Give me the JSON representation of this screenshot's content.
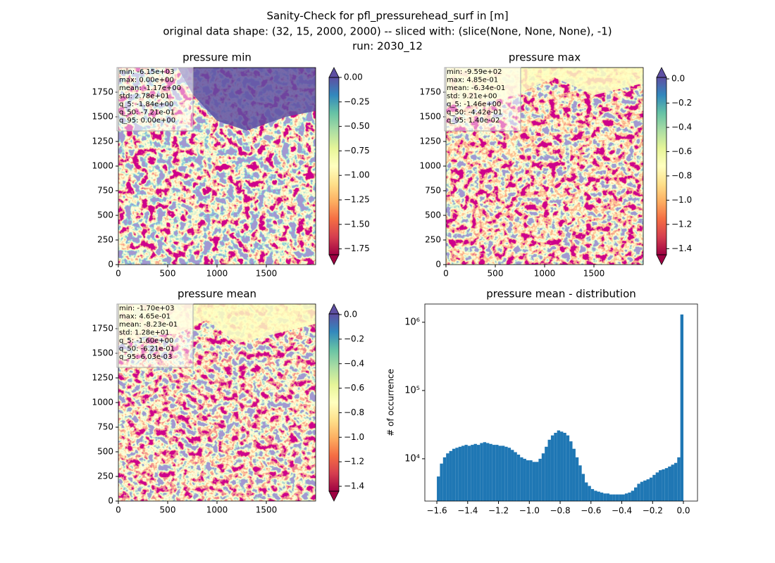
{
  "suptitle": [
    "Sanity-Check for pfl_pressurehead_surf in [m]",
    "original data shape: (32, 15, 2000, 2000) -- sliced with: (slice(None, None, None), -1)",
    "run: 2030_12"
  ],
  "chart_data": [
    {
      "type": "heatmap",
      "title": "pressure min",
      "colormap": "Spectral",
      "extend": "both",
      "xlim": [
        0,
        2000
      ],
      "ylim": [
        0,
        2000
      ],
      "xticks": [
        0,
        500,
        1000,
        1500
      ],
      "yticks": [
        0,
        250,
        500,
        750,
        1000,
        1250,
        1500,
        1750
      ],
      "clim": [
        -1.81,
        0
      ],
      "cticks": [
        {
          "value": 0,
          "label": "0.00"
        },
        {
          "value": -0.25,
          "label": "−0.25"
        },
        {
          "value": -0.5,
          "label": "−0.50"
        },
        {
          "value": -0.75,
          "label": "−0.75"
        },
        {
          "value": -1,
          "label": "−1.00"
        },
        {
          "value": -1.25,
          "label": "−1.25"
        },
        {
          "value": -1.5,
          "label": "−1.50"
        },
        {
          "value": -1.75,
          "label": "−1.75"
        }
      ],
      "stats": [
        "min: -6.15e+03",
        "max: 0.00e+00",
        "mean: -1.17e+00",
        "std: 2.78e+01",
        "q_5: -1.84e+00",
        "q_50: -7.21e-01",
        "q_95: 0.00e+00"
      ]
    },
    {
      "type": "heatmap",
      "title": "pressure max",
      "colormap": "Spectral",
      "extend": "both",
      "xlim": [
        0,
        2000
      ],
      "ylim": [
        0,
        2000
      ],
      "xticks": [
        0,
        500,
        1000,
        1500
      ],
      "yticks": [
        0,
        250,
        500,
        750,
        1000,
        1250,
        1500,
        1750
      ],
      "clim": [
        -1.45,
        0.012
      ],
      "cticks": [
        {
          "value": 0,
          "label": "0.0"
        },
        {
          "value": -0.2,
          "label": "−0.2"
        },
        {
          "value": -0.4,
          "label": "−0.4"
        },
        {
          "value": -0.6,
          "label": "−0.6"
        },
        {
          "value": -0.8,
          "label": "−0.8"
        },
        {
          "value": -1,
          "label": "−1.0"
        },
        {
          "value": -1.2,
          "label": "−1.2"
        },
        {
          "value": -1.4,
          "label": "−1.4"
        }
      ],
      "stats": [
        "min: -9.59e+02",
        "max: 4.85e-01",
        "mean: -6.34e-01",
        "std: 9.21e+00",
        "q_5: -1.46e+00",
        "q_50: -4.42e-01",
        "q_95: 1.40e-02"
      ]
    },
    {
      "type": "heatmap",
      "title": "pressure mean",
      "colormap": "Spectral",
      "extend": "both",
      "xlim": [
        0,
        2000
      ],
      "ylim": [
        0,
        2000
      ],
      "xticks": [
        0,
        500,
        1000,
        1500
      ],
      "yticks": [
        0,
        250,
        500,
        750,
        1000,
        1250,
        1500,
        1750
      ],
      "clim": [
        -1.44,
        0.006
      ],
      "cticks": [
        {
          "value": 0,
          "label": "0.0"
        },
        {
          "value": -0.2,
          "label": "−0.2"
        },
        {
          "value": -0.4,
          "label": "−0.4"
        },
        {
          "value": -0.6,
          "label": "−0.6"
        },
        {
          "value": -0.8,
          "label": "−0.8"
        },
        {
          "value": -1,
          "label": "−1.0"
        },
        {
          "value": -1.2,
          "label": "−1.2"
        },
        {
          "value": -1.4,
          "label": "−1.4"
        }
      ],
      "stats": [
        "min: -1.70e+03",
        "max: 4.65e-01",
        "mean: -8.23e-01",
        "std: 1.28e+01",
        "q_5: -1.60e+00",
        "q_50: -6.21e-01",
        "q_95: 6.03e-03"
      ]
    },
    {
      "type": "histogram",
      "title": "pressure mean - distribution",
      "ylabel": "# of occurrence",
      "color": "#1f77b4",
      "log_y": true,
      "xlim": [
        -1.678,
        0.0914
      ],
      "ylim": [
        2400,
        1850000
      ],
      "xticks": [
        {
          "value": -1.6,
          "label": "−1.6"
        },
        {
          "value": -1.4,
          "label": "−1.4"
        },
        {
          "value": -1.2,
          "label": "−1.2"
        },
        {
          "value": -1,
          "label": "−1.0"
        },
        {
          "value": -0.8,
          "label": "−0.8"
        },
        {
          "value": -0.6,
          "label": "−0.6"
        },
        {
          "value": -0.4,
          "label": "−0.4"
        },
        {
          "value": -0.2,
          "label": "−0.2"
        },
        {
          "value": 0,
          "label": "0.0"
        }
      ],
      "yticks": [
        {
          "value": 10000,
          "label": "10⁴"
        },
        {
          "value": 100000,
          "label": "10⁵"
        },
        {
          "value": 1000000,
          "label": "10⁶"
        }
      ],
      "bins": [
        -1.6,
        -1.58,
        -1.56,
        -1.54,
        -1.52,
        -1.5,
        -1.48,
        -1.46,
        -1.44,
        -1.42,
        -1.4,
        -1.38,
        -1.36,
        -1.34,
        -1.32,
        -1.3,
        -1.28,
        -1.26,
        -1.24,
        -1.22,
        -1.2,
        -1.18,
        -1.16,
        -1.14,
        -1.12,
        -1.1,
        -1.08,
        -1.06,
        -1.04,
        -1.02,
        -1,
        -0.98,
        -0.96,
        -0.94,
        -0.92,
        -0.9,
        -0.88,
        -0.86,
        -0.84,
        -0.82,
        -0.8,
        -0.78,
        -0.76,
        -0.74,
        -0.72,
        -0.7,
        -0.68,
        -0.66,
        -0.64,
        -0.62,
        -0.6,
        -0.58,
        -0.56,
        -0.54,
        -0.52,
        -0.5,
        -0.48,
        -0.46,
        -0.44,
        -0.42,
        -0.4,
        -0.38,
        -0.36,
        -0.34,
        -0.32,
        -0.3,
        -0.28,
        -0.26,
        -0.24,
        -0.22,
        -0.2,
        -0.18,
        -0.16,
        -0.14,
        -0.12,
        -0.1,
        -0.08,
        -0.06,
        -0.04,
        -0.02,
        0
      ],
      "values": [
        5500,
        8500,
        10500,
        12000,
        13000,
        14000,
        14500,
        15000,
        15500,
        16000,
        15500,
        16000,
        16500,
        16000,
        17000,
        17500,
        17000,
        16500,
        16000,
        16000,
        15500,
        15500,
        15000,
        14500,
        13500,
        12500,
        11500,
        10500,
        10000,
        9500,
        9500,
        9000,
        9000,
        10000,
        12000,
        15000,
        19000,
        22000,
        24000,
        26000,
        25000,
        24000,
        22000,
        18000,
        14000,
        10500,
        8000,
        6000,
        4500,
        4000,
        3600,
        3400,
        3300,
        3200,
        3100,
        3100,
        3000,
        3000,
        3000,
        3000,
        3000,
        3100,
        3200,
        3400,
        3800,
        4300,
        4600,
        4800,
        5000,
        5300,
        5800,
        6300,
        6800,
        7000,
        7300,
        7700,
        8200,
        8700,
        10500,
        1300000
      ]
    }
  ]
}
